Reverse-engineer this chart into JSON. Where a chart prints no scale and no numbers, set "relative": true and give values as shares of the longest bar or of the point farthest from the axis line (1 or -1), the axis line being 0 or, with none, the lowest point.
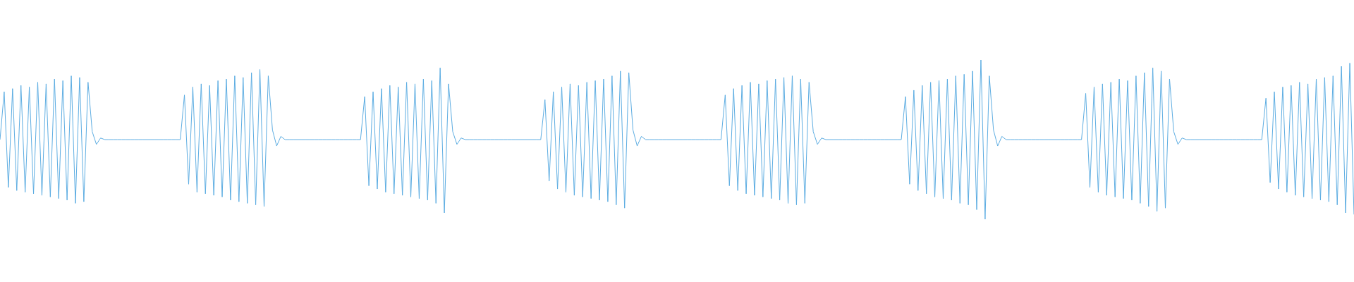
{
  "chart_data": {
    "type": "line",
    "relative": true,
    "tick_labels": false,
    "marker": "none",
    "categories": [
      null,
      null,
      null,
      null,
      null,
      null,
      null,
      null,
      null,
      null,
      null,
      null,
      null,
      null,
      null,
      null,
      null,
      null,
      null,
      null,
      null,
      null,
      null,
      null,
      null,
      null,
      null,
      null,
      null,
      null,
      null,
      null,
      null,
      null,
      null,
      null,
      null,
      null,
      null,
      null,
      null,
      null,
      null,
      null,
      null,
      null,
      null,
      null,
      null,
      null,
      null,
      null,
      null,
      null,
      null,
      null,
      null,
      null,
      null,
      null,
      null,
      null,
      null,
      null,
      null,
      null,
      null,
      null,
      null,
      null,
      null,
      null,
      null,
      null,
      null,
      null,
      null,
      null,
      null,
      null,
      null,
      null,
      null,
      null,
      null,
      null,
      null,
      null,
      null,
      null,
      null,
      null,
      null,
      null,
      null,
      null,
      null,
      null,
      null,
      null,
      null,
      null,
      null,
      null,
      null,
      null,
      null,
      null,
      null,
      null,
      null,
      null,
      null,
      null,
      null,
      null,
      null,
      null,
      null,
      null,
      null,
      null,
      null,
      null,
      null,
      null,
      null,
      null,
      null,
      null,
      null,
      null,
      null,
      null,
      null,
      null,
      null,
      null,
      null,
      null,
      null,
      null,
      null,
      null,
      null,
      null,
      null,
      null,
      null,
      null,
      null,
      null,
      null,
      null,
      null,
      null,
      null,
      null,
      null,
      null,
      null,
      null,
      null,
      null,
      null,
      null,
      null,
      null,
      null,
      null,
      null,
      null,
      null,
      null,
      null,
      null,
      null,
      null,
      null,
      null,
      null,
      null,
      null,
      null,
      null,
      null,
      null,
      null,
      null,
      null,
      null,
      null,
      null,
      null,
      null,
      null,
      null,
      null,
      null,
      null,
      null,
      null,
      null,
      null,
      null,
      null,
      null,
      null,
      null,
      null,
      null,
      null,
      null,
      null,
      null,
      null,
      null,
      null,
      null,
      null,
      null,
      null,
      null,
      null,
      null,
      null,
      null,
      null,
      null,
      null,
      null,
      null,
      null,
      null,
      null,
      null,
      null,
      null,
      null,
      null,
      null,
      null,
      null,
      null,
      null,
      null,
      null,
      null,
      null,
      null,
      null,
      null,
      null,
      null,
      null,
      null,
      null,
      null,
      null,
      null,
      null,
      null,
      null,
      null,
      null,
      null,
      null,
      null,
      null,
      null,
      null,
      null,
      null,
      null,
      null,
      null,
      null,
      null,
      null,
      null,
      null,
      null,
      null,
      null,
      null,
      null,
      null,
      null,
      null,
      null,
      null,
      null,
      null,
      null,
      null,
      null,
      null,
      null,
      null,
      null,
      null,
      null,
      null,
      null,
      null,
      null,
      null,
      null,
      null,
      null,
      null,
      null,
      null,
      null,
      null,
      null,
      null,
      null,
      null,
      null,
      null,
      null,
      null,
      null
    ],
    "series": [
      {
        "color": "#5dade2",
        "values": [
          0.5,
          0.8,
          0.2,
          0.82,
          0.18,
          0.84,
          0.17,
          0.83,
          0.16,
          0.86,
          0.15,
          0.85,
          0.14,
          0.88,
          0.13,
          0.87,
          0.12,
          0.9,
          0.1,
          0.89,
          0.11,
          0.86,
          0.55,
          0.47,
          0.51,
          0.5,
          0.5,
          0.5,
          0.5,
          0.5,
          0.5,
          0.5,
          0.5,
          0.5,
          0.5,
          0.5,
          0.5,
          0.5,
          0.5,
          0.5,
          0.5,
          0.5,
          0.5,
          0.5,
          0.78,
          0.22,
          0.83,
          0.17,
          0.85,
          0.16,
          0.84,
          0.15,
          0.87,
          0.14,
          0.88,
          0.12,
          0.9,
          0.11,
          0.89,
          0.1,
          0.92,
          0.09,
          0.94,
          0.08,
          0.9,
          0.56,
          0.46,
          0.52,
          0.5,
          0.5,
          0.5,
          0.5,
          0.5,
          0.5,
          0.5,
          0.5,
          0.5,
          0.5,
          0.5,
          0.5,
          0.5,
          0.5,
          0.5,
          0.5,
          0.5,
          0.5,
          0.5,
          0.77,
          0.21,
          0.8,
          0.19,
          0.82,
          0.17,
          0.84,
          0.16,
          0.83,
          0.15,
          0.86,
          0.14,
          0.85,
          0.13,
          0.88,
          0.12,
          0.87,
          0.1,
          0.95,
          0.04,
          0.85,
          0.55,
          0.47,
          0.51,
          0.5,
          0.5,
          0.5,
          0.5,
          0.5,
          0.5,
          0.5,
          0.5,
          0.5,
          0.5,
          0.5,
          0.5,
          0.5,
          0.5,
          0.5,
          0.5,
          0.5,
          0.5,
          0.5,
          0.75,
          0.24,
          0.8,
          0.19,
          0.83,
          0.17,
          0.85,
          0.15,
          0.84,
          0.14,
          0.86,
          0.13,
          0.87,
          0.12,
          0.88,
          0.11,
          0.9,
          0.09,
          0.93,
          0.07,
          0.92,
          0.56,
          0.46,
          0.52,
          0.5,
          0.5,
          0.5,
          0.5,
          0.5,
          0.5,
          0.5,
          0.5,
          0.5,
          0.5,
          0.5,
          0.5,
          0.5,
          0.5,
          0.5,
          0.5,
          0.5,
          0.5,
          0.5,
          0.78,
          0.21,
          0.82,
          0.18,
          0.84,
          0.16,
          0.86,
          0.15,
          0.85,
          0.14,
          0.87,
          0.13,
          0.88,
          0.12,
          0.89,
          0.1,
          0.9,
          0.09,
          0.88,
          0.1,
          0.86,
          0.55,
          0.47,
          0.51,
          0.5,
          0.5,
          0.5,
          0.5,
          0.5,
          0.5,
          0.5,
          0.5,
          0.5,
          0.5,
          0.5,
          0.5,
          0.5,
          0.5,
          0.5,
          0.5,
          0.5,
          0.5,
          0.5,
          0.77,
          0.22,
          0.81,
          0.18,
          0.84,
          0.16,
          0.86,
          0.14,
          0.87,
          0.13,
          0.88,
          0.12,
          0.9,
          0.1,
          0.91,
          0.09,
          0.93,
          0.06,
          1,
          0,
          0.9,
          0.56,
          0.46,
          0.52,
          0.5,
          0.5,
          0.5,
          0.5,
          0.5,
          0.5,
          0.5,
          0.5,
          0.5,
          0.5,
          0.5,
          0.5,
          0.5,
          0.5,
          0.5,
          0.5,
          0.5,
          0.5,
          0.5,
          0.79,
          0.2,
          0.83,
          0.17,
          0.85,
          0.15,
          0.86,
          0.14,
          0.88,
          0.13,
          0.87,
          0.12,
          0.9,
          0.1,
          0.92,
          0.08,
          0.95,
          0.05,
          0.93,
          0.07,
          0.88,
          0.55,
          0.47,
          0.51,
          0.5,
          0.5,
          0.5,
          0.5,
          0.5,
          0.5,
          0.5,
          0.5,
          0.5,
          0.5,
          0.5,
          0.5,
          0.5,
          0.5,
          0.5,
          0.5,
          0.5,
          0.5,
          0.5,
          0.76,
          0.23,
          0.8,
          0.19,
          0.83,
          0.17,
          0.84,
          0.15,
          0.86,
          0.14,
          0.85,
          0.13,
          0.88,
          0.12,
          0.89,
          0.11,
          0.9,
          0.09,
          0.96,
          0.04,
          0.98,
          0.03
        ]
      }
    ]
  }
}
